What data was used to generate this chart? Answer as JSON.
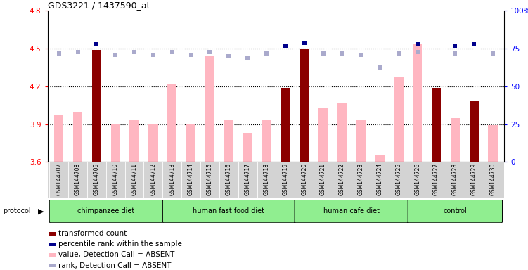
{
  "title": "GDS3221 / 1437590_at",
  "samples": [
    "GSM144707",
    "GSM144708",
    "GSM144709",
    "GSM144710",
    "GSM144711",
    "GSM144712",
    "GSM144713",
    "GSM144714",
    "GSM144715",
    "GSM144716",
    "GSM144717",
    "GSM144718",
    "GSM144719",
    "GSM144720",
    "GSM144721",
    "GSM144722",
    "GSM144723",
    "GSM144724",
    "GSM144725",
    "GSM144726",
    "GSM144727",
    "GSM144728",
    "GSM144729",
    "GSM144730"
  ],
  "transformed_count": [
    null,
    null,
    4.49,
    null,
    null,
    null,
    null,
    null,
    null,
    null,
    null,
    null,
    4.19,
    4.5,
    null,
    null,
    null,
    null,
    null,
    null,
    4.19,
    null,
    4.09,
    null
  ],
  "value_absent": [
    3.97,
    4.0,
    null,
    3.9,
    3.93,
    3.9,
    4.22,
    3.9,
    4.44,
    3.93,
    3.83,
    3.93,
    null,
    null,
    4.03,
    4.07,
    3.93,
    3.65,
    4.27,
    4.54,
    null,
    3.95,
    null,
    3.89
  ],
  "rank_absent": [
    4.46,
    4.47,
    null,
    4.45,
    4.47,
    4.45,
    4.47,
    4.45,
    4.47,
    4.44,
    4.43,
    4.46,
    null,
    null,
    4.46,
    4.46,
    4.45,
    4.35,
    4.46,
    4.47,
    null,
    4.46,
    null,
    4.46
  ],
  "percentile_rank": [
    null,
    null,
    78,
    null,
    null,
    null,
    null,
    null,
    null,
    null,
    null,
    null,
    77,
    79,
    null,
    null,
    null,
    null,
    null,
    78,
    null,
    77,
    78,
    null
  ],
  "ylim_left": [
    3.6,
    4.8
  ],
  "ylim_right": [
    0,
    100
  ],
  "yticks_left": [
    3.6,
    3.9,
    4.2,
    4.5,
    4.8
  ],
  "yticks_right": [
    0,
    25,
    50,
    75,
    100
  ],
  "dotted_lines": [
    3.9,
    4.2,
    4.5
  ],
  "groups": [
    {
      "label": "chimpanzee diet",
      "start": 0,
      "end": 6
    },
    {
      "label": "human fast food diet",
      "start": 6,
      "end": 13
    },
    {
      "label": "human cafe diet",
      "start": 13,
      "end": 19
    },
    {
      "label": "control",
      "start": 19,
      "end": 24
    }
  ],
  "group_color": "#90EE90",
  "bar_width": 0.5,
  "dark_red": "#8B0000",
  "light_pink": "#FFB6C1",
  "dark_blue": "#00008B",
  "light_blue": "#AAAACC",
  "plot_bg": "#FFFFFF",
  "sample_bg": "#D3D3D3",
  "legend_items": [
    {
      "color": "#8B0000",
      "label": "transformed count"
    },
    {
      "color": "#00008B",
      "label": "percentile rank within the sample"
    },
    {
      "color": "#FFB6C1",
      "label": "value, Detection Call = ABSENT"
    },
    {
      "color": "#AAAACC",
      "label": "rank, Detection Call = ABSENT"
    }
  ]
}
